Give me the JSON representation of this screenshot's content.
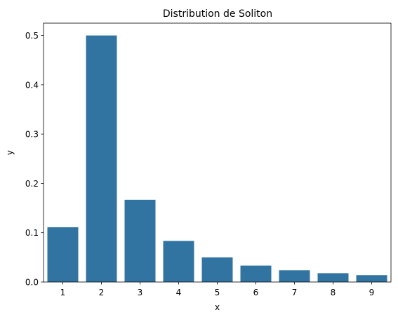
{
  "chart_data": {
    "type": "bar",
    "title": "Distribution de Soliton",
    "xlabel": "x",
    "ylabel": "y",
    "categories": [
      "1",
      "2",
      "3",
      "4",
      "5",
      "6",
      "7",
      "8",
      "9"
    ],
    "values": [
      0.1111,
      0.5,
      0.1667,
      0.0833,
      0.05,
      0.0333,
      0.0238,
      0.0179,
      0.0139
    ],
    "ylim": [
      0,
      0.525
    ],
    "yticks": [
      0.0,
      0.1,
      0.2,
      0.3,
      0.4,
      0.5
    ],
    "ytick_labels": [
      "0.0",
      "0.1",
      "0.2",
      "0.3",
      "0.4",
      "0.5"
    ],
    "grid": false,
    "legend": "none",
    "colors": {
      "bar": "#3274a1",
      "axis": "#000000",
      "background": "#ffffff"
    }
  }
}
